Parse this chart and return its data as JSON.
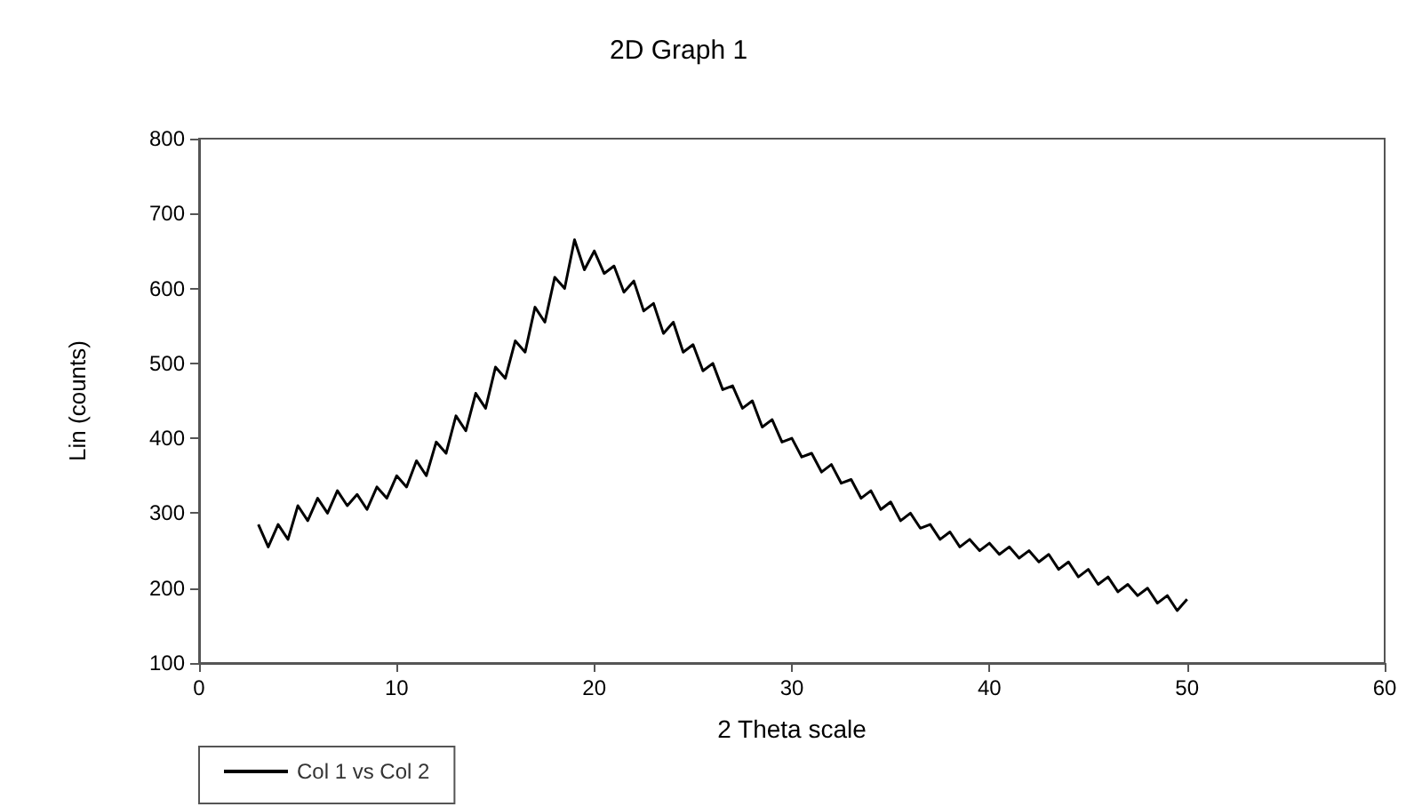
{
  "chart_data": {
    "type": "line",
    "title": "2D Graph 1",
    "xlabel": "2 Theta scale",
    "ylabel": "Lin (counts)",
    "x": [
      3,
      3.5,
      4,
      4.5,
      5,
      5.5,
      6,
      6.5,
      7,
      7.5,
      8,
      8.5,
      9,
      9.5,
      10,
      10.5,
      11,
      11.5,
      12,
      12.5,
      13,
      13.5,
      14,
      14.5,
      15,
      15.5,
      16,
      16.5,
      17,
      17.5,
      18,
      18.5,
      19,
      19.5,
      20,
      20.5,
      21,
      21.5,
      22,
      22.5,
      23,
      23.5,
      24,
      24.5,
      25,
      25.5,
      26,
      26.5,
      27,
      27.5,
      28,
      28.5,
      29,
      29.5,
      30,
      30.5,
      31,
      31.5,
      32,
      32.5,
      33,
      33.5,
      34,
      34.5,
      35,
      35.5,
      36,
      36.5,
      37,
      37.5,
      38,
      38.5,
      39,
      39.5,
      40,
      40.5,
      41,
      41.5,
      42,
      42.5,
      43,
      43.5,
      44,
      44.5,
      45,
      45.5,
      46,
      46.5,
      47,
      47.5,
      48,
      48.5,
      49,
      49.5,
      50
    ],
    "series": [
      {
        "name": "Col 1 vs Col 2",
        "color": "#000000",
        "values": [
          285,
          255,
          285,
          265,
          310,
          290,
          320,
          300,
          330,
          310,
          325,
          305,
          335,
          320,
          350,
          335,
          370,
          350,
          395,
          380,
          430,
          410,
          460,
          440,
          495,
          480,
          530,
          515,
          575,
          555,
          615,
          600,
          665,
          625,
          650,
          620,
          630,
          595,
          610,
          570,
          580,
          540,
          555,
          515,
          525,
          490,
          500,
          465,
          470,
          440,
          450,
          415,
          425,
          395,
          400,
          375,
          380,
          355,
          365,
          340,
          345,
          320,
          330,
          305,
          315,
          290,
          300,
          280,
          285,
          265,
          275,
          255,
          265,
          250,
          260,
          245,
          255,
          240,
          250,
          235,
          245,
          225,
          235,
          215,
          225,
          205,
          215,
          195,
          205,
          190,
          200,
          180,
          190,
          170,
          185
        ]
      }
    ],
    "xlim": [
      0,
      60
    ],
    "xticks": [
      0,
      10,
      20,
      30,
      40,
      50,
      60
    ],
    "ylim": [
      100,
      800
    ],
    "yticks": [
      100,
      200,
      300,
      400,
      500,
      600,
      700,
      800
    ],
    "grid": false,
    "legend": "bottom left",
    "marker": "none",
    "line_style": "solid"
  }
}
